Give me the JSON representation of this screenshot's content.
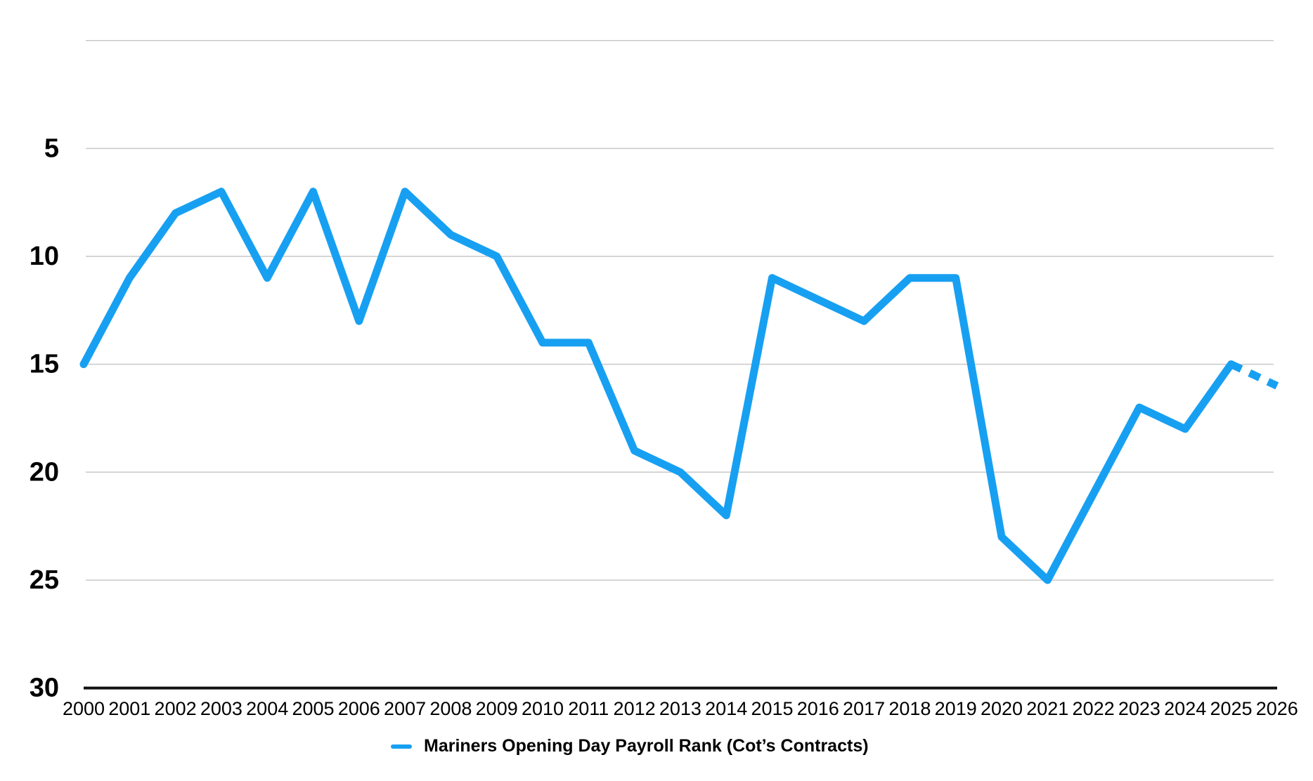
{
  "page": {
    "background_color": "#ffffff",
    "title": ""
  },
  "chart_data": {
    "type": "line",
    "title": "",
    "legend": "Mariners Opening Day Payroll Rank (Cot’s Contracts)",
    "legend_position": "bottom",
    "categories": [
      "2000",
      "2001",
      "2002",
      "2003",
      "2004",
      "2005",
      "2006",
      "2007",
      "2008",
      "2009",
      "2010",
      "2011",
      "2012",
      "2013",
      "2014",
      "2015",
      "2016",
      "2017",
      "2018",
      "2019",
      "2020",
      "2021",
      "2022",
      "2023",
      "2024",
      "2025",
      "2026"
    ],
    "series": [
      {
        "name": "Mariners Opening Day Payroll Rank (Cot’s Contracts)",
        "values": [
          15,
          11,
          8,
          7,
          11,
          7,
          13,
          7,
          9,
          10,
          14,
          14,
          19,
          20,
          22,
          11,
          12,
          13,
          11,
          11,
          23,
          25,
          21,
          17,
          18,
          15,
          16
        ],
        "last_segment_dashed": true,
        "dashed_from_category": "2025",
        "color": "#17A0F2"
      }
    ],
    "xlabel": "",
    "ylabel": "",
    "y_axis": {
      "ticks": [
        5,
        10,
        15,
        20,
        25,
        30
      ],
      "unlabeled_top_gridline_value": 0,
      "range": [
        0,
        30
      ],
      "inverted": true,
      "grid": true
    },
    "colors": {
      "line": "#17A0F2",
      "gridline": "#c9c9c9",
      "axis_line": "#111111",
      "text": "#000000"
    }
  }
}
